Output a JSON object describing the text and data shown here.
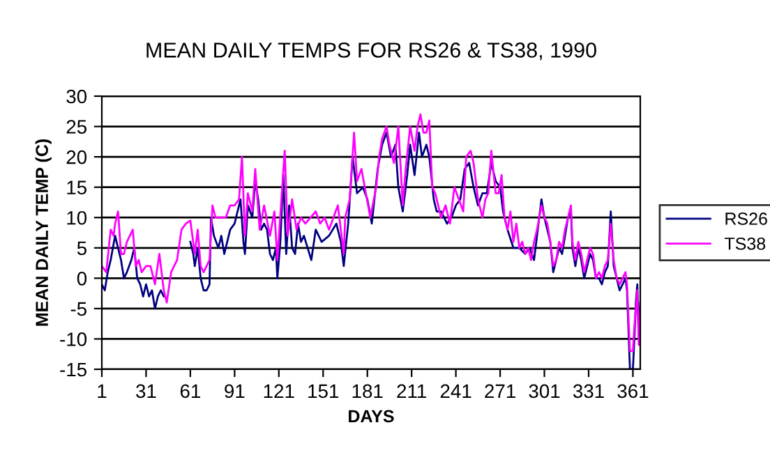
{
  "chart_data": {
    "type": "line",
    "title": "MEAN DAILY TEMPS FOR RS26 & TS38, 1990",
    "xlabel": "DAYS",
    "ylabel": "MEAN DAILY TEMP (C)",
    "xlim": [
      1,
      366
    ],
    "xticks": [
      1,
      31,
      61,
      91,
      121,
      151,
      181,
      211,
      241,
      271,
      301,
      331,
      361
    ],
    "ylim": [
      -15,
      30
    ],
    "yticks": [
      -15,
      -10,
      -5,
      0,
      5,
      10,
      15,
      20,
      25,
      30
    ],
    "grid": "y",
    "legend": "right",
    "marker": "none",
    "line_style": "solid",
    "series": [
      {
        "name": "RS26",
        "color": "#000080",
        "x": [
          1,
          3,
          5,
          7,
          10,
          12,
          14,
          16,
          18,
          21,
          23,
          25,
          27,
          29,
          31,
          33,
          35,
          37,
          39,
          41,
          43,
          52,
          61,
          63,
          64,
          66,
          68,
          70,
          72,
          74,
          75,
          77,
          80,
          82,
          84,
          86,
          88,
          91,
          93,
          95,
          97,
          98,
          100,
          103,
          105,
          107,
          109,
          111,
          113,
          115,
          117,
          119,
          120,
          122,
          124,
          126,
          128,
          130,
          132,
          134,
          136,
          138,
          143,
          146,
          150,
          155,
          160,
          163,
          165,
          168,
          171,
          174,
          178,
          181,
          184,
          188,
          191,
          194,
          197,
          200,
          202,
          205,
          208,
          210,
          213,
          216,
          218,
          221,
          223,
          226,
          228,
          231,
          235,
          238,
          241,
          244,
          247,
          250,
          253,
          256,
          259,
          262,
          265,
          268,
          271,
          273,
          276,
          280,
          284,
          288,
          291,
          294,
          296,
          299,
          301,
          303,
          305,
          307,
          309,
          311,
          313,
          315,
          317,
          319,
          320,
          322,
          324,
          326,
          328,
          330,
          332,
          334,
          336,
          338,
          340,
          342,
          344,
          346,
          348,
          350,
          352,
          354,
          356,
          357,
          359,
          361,
          362,
          363,
          364,
          365,
          366
        ],
        "values": [
          -1,
          -2,
          1,
          3,
          7,
          5,
          3,
          0,
          1,
          3,
          5,
          0,
          -1,
          -3,
          -1,
          -3,
          -2,
          -5,
          -3,
          -2,
          -3,
          null,
          6,
          4,
          2,
          5,
          0,
          -2,
          -2,
          -1,
          10,
          7,
          5,
          7,
          4,
          6,
          8,
          9,
          11,
          13,
          6,
          4,
          12,
          10,
          16,
          13,
          8,
          9,
          8,
          4,
          3,
          5,
          0,
          6,
          17,
          4,
          12,
          5,
          4,
          9,
          6,
          7,
          3,
          8,
          6,
          7,
          9,
          6,
          2,
          9,
          20,
          14,
          15,
          13,
          9,
          18,
          22,
          24,
          20,
          22,
          15,
          11,
          17,
          22,
          17,
          24,
          20,
          22,
          20,
          13,
          11,
          11,
          9,
          10,
          12,
          13,
          18,
          19,
          15,
          12,
          14,
          14,
          19,
          16,
          15,
          11,
          8,
          5,
          5,
          4,
          5,
          3,
          7,
          13,
          10,
          8,
          6,
          1,
          3,
          5,
          4,
          7,
          10,
          11,
          5,
          2,
          5,
          3,
          0,
          2,
          4,
          3,
          0,
          0,
          -1,
          1,
          2,
          11,
          2,
          0,
          -2,
          -1,
          0,
          -2,
          -15,
          -15,
          -10,
          -4,
          -1,
          -10,
          -4
        ]
      },
      {
        "name": "TS38",
        "color": "#ff00ff",
        "x": [
          1,
          4,
          7,
          9,
          10,
          12,
          14,
          16,
          18,
          22,
          24,
          26,
          28,
          31,
          34,
          37,
          40,
          43,
          45,
          48,
          52,
          55,
          58,
          61,
          64,
          66,
          68,
          70,
          74,
          76,
          78,
          82,
          85,
          88,
          91,
          94,
          96,
          98,
          100,
          103,
          105,
          108,
          111,
          115,
          118,
          120,
          123,
          125,
          127,
          130,
          133,
          136,
          139,
          146,
          149,
          152,
          155,
          158,
          161,
          163,
          165,
          166,
          169,
          172,
          174,
          177,
          180,
          183,
          187,
          189,
          191,
          194,
          196,
          199,
          202,
          205,
          207,
          210,
          213,
          215,
          217,
          219,
          221,
          223,
          225,
          227,
          231,
          234,
          237,
          240,
          243,
          246,
          248,
          251,
          253,
          256,
          259,
          261,
          263,
          265,
          268,
          270,
          272,
          274,
          276,
          278,
          280,
          282,
          284,
          286,
          288,
          290,
          292,
          294,
          296,
          299,
          301,
          303,
          305,
          307,
          309,
          311,
          313,
          315,
          317,
          319,
          320,
          322,
          324,
          326,
          328,
          330,
          332,
          334,
          336,
          338,
          340,
          342,
          344,
          346,
          348,
          350,
          352,
          354,
          356,
          357,
          359,
          361,
          362,
          363,
          364,
          365,
          366
        ],
        "values": [
          2,
          1,
          8,
          7,
          9,
          11,
          4,
          4,
          6,
          8,
          2,
          3,
          1,
          2,
          2,
          -1,
          4,
          -2,
          -4,
          1,
          3,
          8,
          9,
          9.5,
          4,
          8,
          2,
          1,
          3,
          12,
          10,
          10,
          10,
          12,
          12,
          13,
          20,
          7,
          14,
          11,
          18,
          8,
          12,
          7,
          11,
          3,
          14,
          21,
          7,
          13,
          8,
          10,
          9,
          11,
          9,
          10,
          8,
          10,
          12,
          8,
          4,
          10,
          13,
          24,
          16,
          18,
          14,
          10,
          15,
          20,
          23,
          25,
          22,
          19,
          25,
          12,
          18,
          25,
          21,
          25,
          27,
          24,
          24,
          26,
          15,
          14,
          10,
          12,
          9,
          15,
          13,
          11,
          20,
          21,
          19,
          13,
          10,
          13,
          14,
          21,
          14,
          14,
          17,
          10,
          8,
          11,
          6,
          9,
          5,
          6,
          4,
          5,
          3,
          6,
          8,
          12,
          10,
          9,
          6,
          2,
          3,
          6,
          5,
          8,
          10,
          12,
          6,
          3,
          6,
          4,
          1,
          3,
          5,
          4,
          0,
          1,
          0,
          2,
          3,
          9,
          3,
          0,
          -1,
          0,
          1,
          -1,
          -12,
          -12,
          -8,
          -5,
          -2,
          -11,
          -5
        ]
      }
    ]
  }
}
